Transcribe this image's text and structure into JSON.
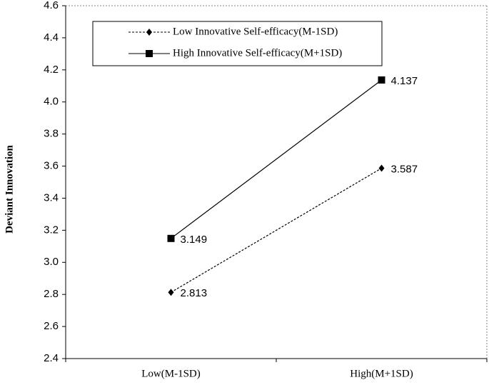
{
  "chart_data": {
    "type": "line",
    "y_label": "Deviant Innovation",
    "categories": [
      "Low(M-1SD)",
      "High(M+1SD)"
    ],
    "series": [
      {
        "name": "Low Innovative Self-efficacy(M-1SD)",
        "color": "#000000",
        "dashed": true,
        "marker": "diamond",
        "values": [
          2.813,
          3.587
        ]
      },
      {
        "name": "High Innovative Self-efficacy(M+1SD)",
        "color": "#000000",
        "dashed": false,
        "marker": "square",
        "values": [
          3.149,
          4.137
        ]
      }
    ],
    "ylim": [
      2.4,
      4.6
    ],
    "yticks": [
      2.4,
      2.6,
      2.8,
      {
        "value": 3,
        "label": "3.0"
      },
      3.2,
      3.4,
      3.6,
      3.8,
      {
        "value": 4,
        "label": "4.0"
      },
      4.2,
      4.4,
      4.6
    ],
    "legend": "upper left"
  }
}
